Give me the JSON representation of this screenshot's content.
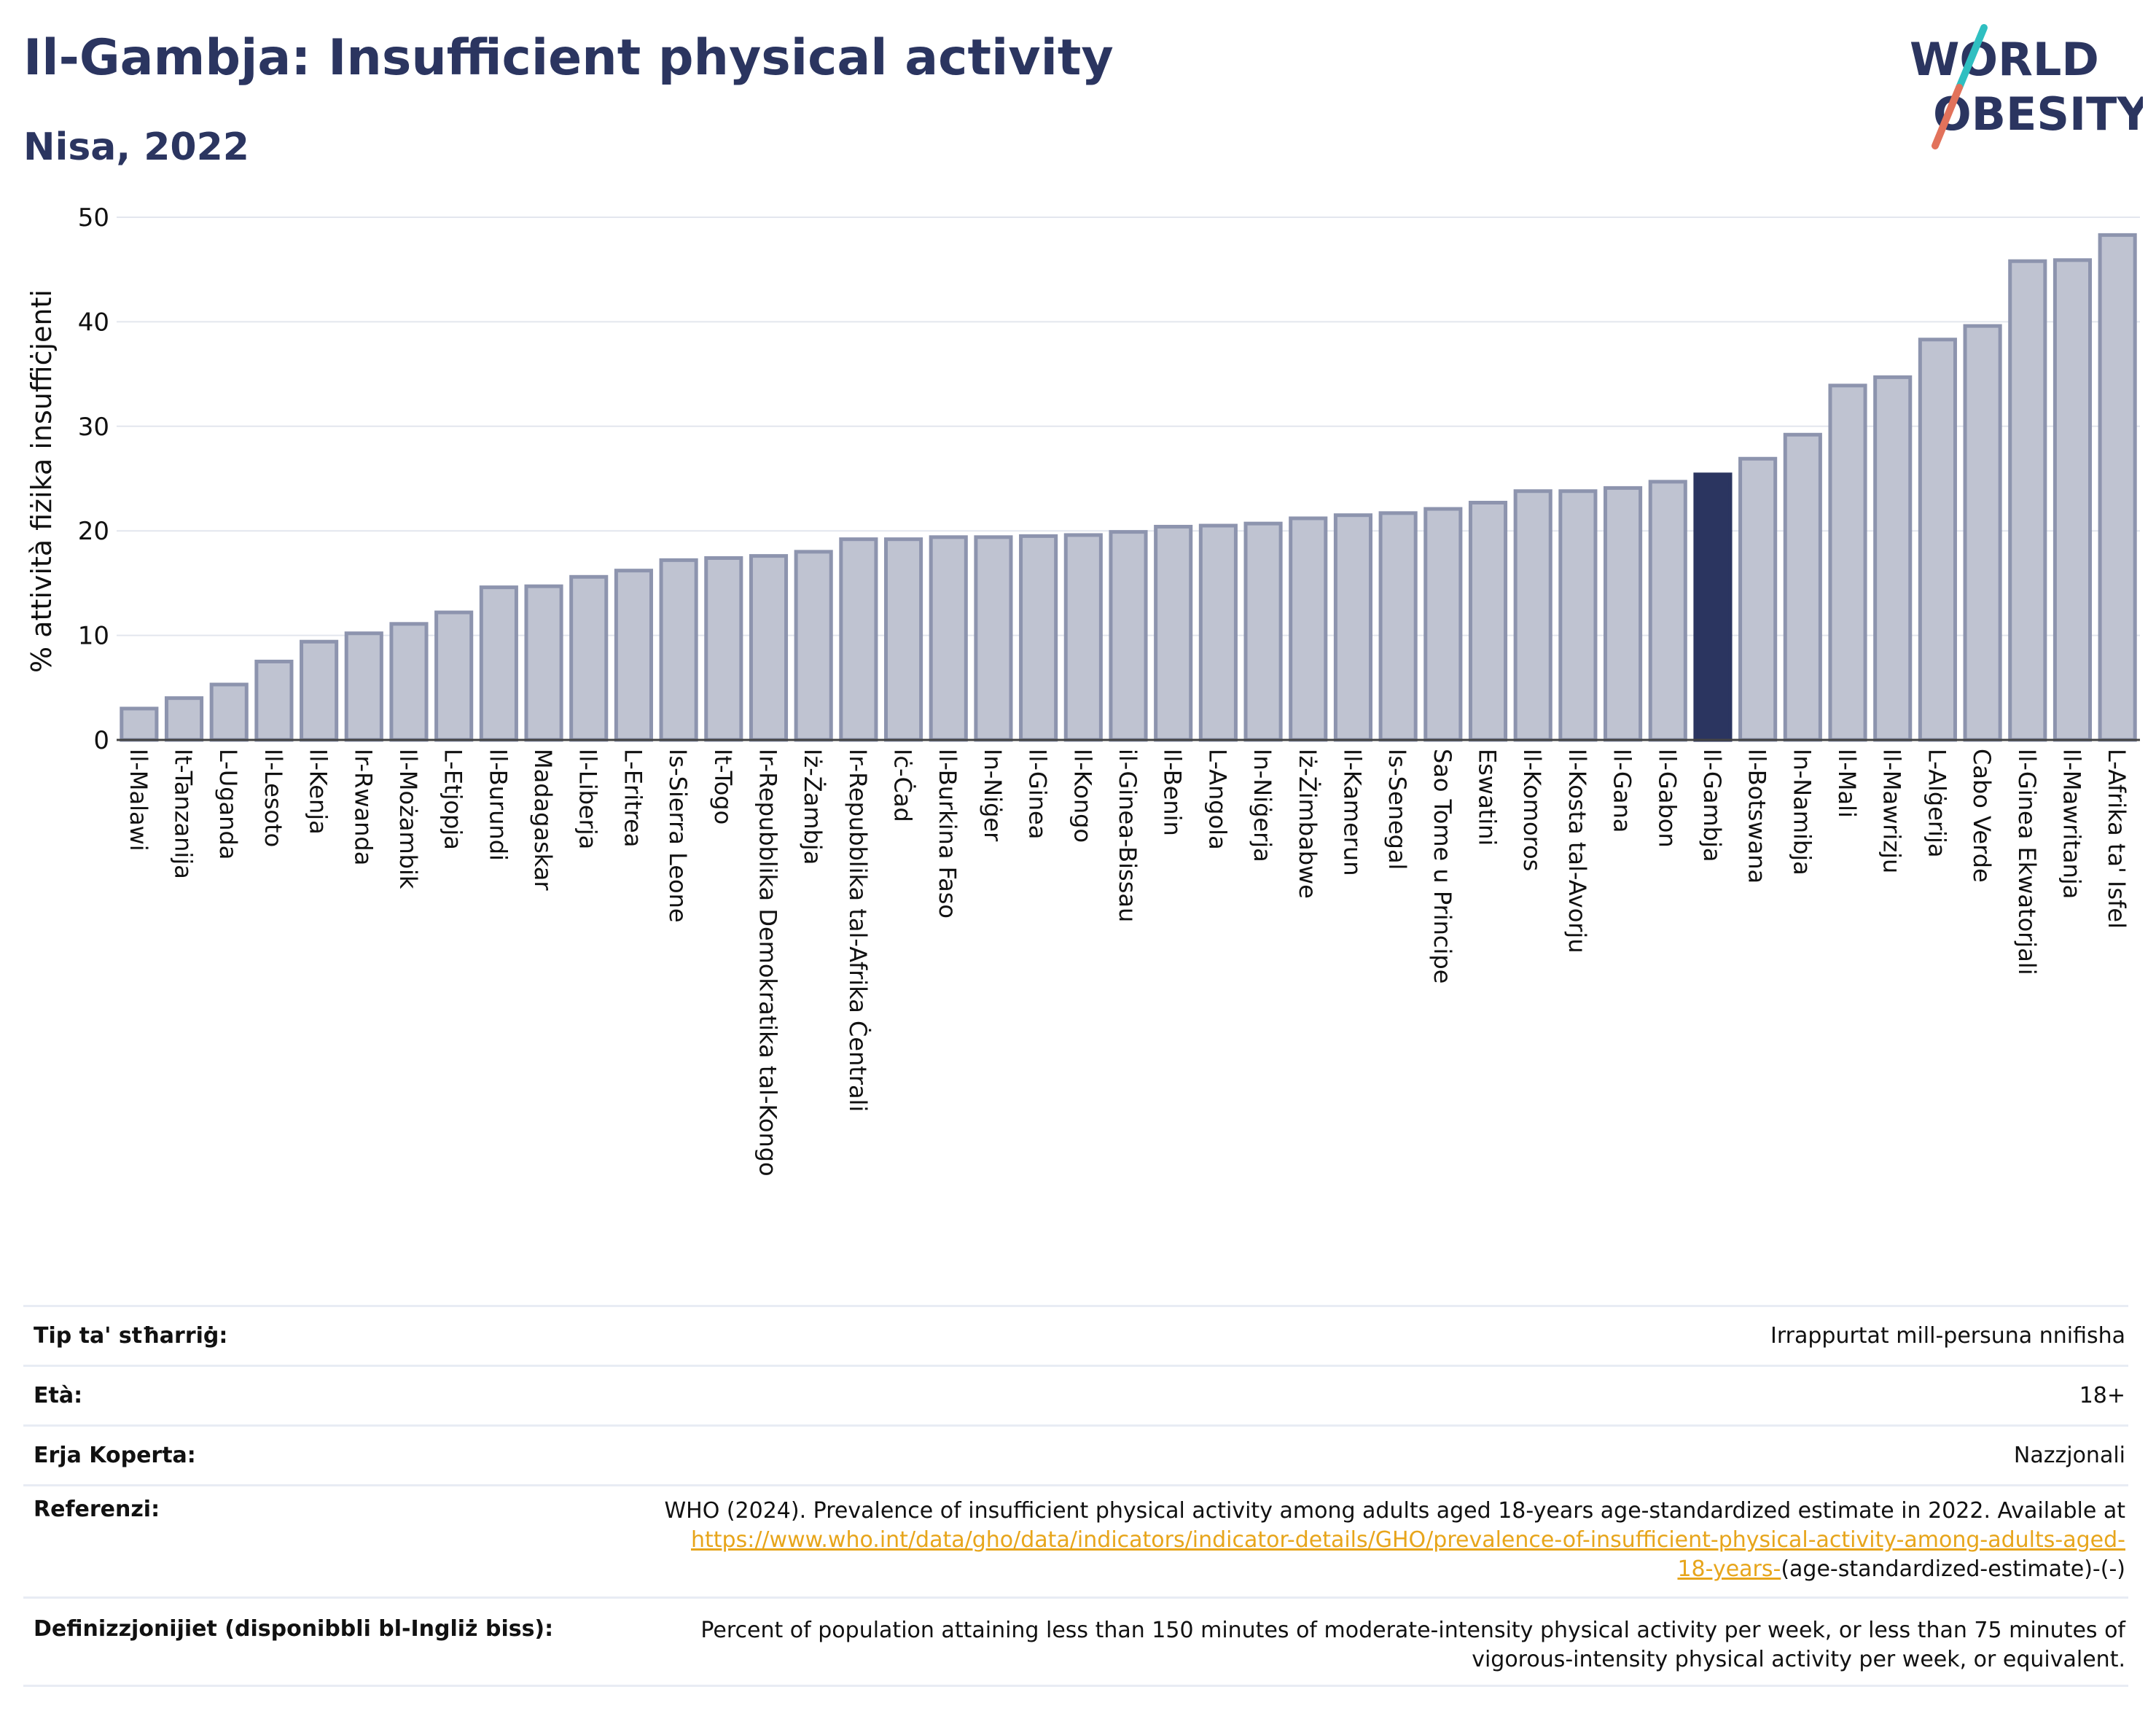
{
  "header": {
    "title": "Il-Gambja: Insufficient physical activity",
    "subtitle": "Nisa, 2022"
  },
  "logo": {
    "line1": "WORLD",
    "line2": "OBESITY",
    "colors": {
      "text": "#2b3560",
      "slash_top": "#2fbfc1",
      "slash_bottom": "#e2725b"
    }
  },
  "chart_data": {
    "type": "bar",
    "ylabel": "% attività fiżika insuffiċjenti",
    "xlabel": "",
    "ylim": [
      0,
      50
    ],
    "yticks": [
      0,
      10,
      20,
      30,
      40,
      50
    ],
    "grid": true,
    "highlight": "Il-Gambja",
    "colors": {
      "bar": "#bfc3d1",
      "bar_edge": "#8d94ae",
      "highlight": "#2b3560"
    },
    "categories": [
      "Il-Malawi",
      "It-Tanzanija",
      "L-Uganda",
      "Il-Lesoto",
      "Il-Kenja",
      "Ir-Rwanda",
      "Il-Możambik",
      "L-Etjopja",
      "Il-Burundi",
      "Madagaskar",
      "Il-Liberja",
      "L-Eritrea",
      "Is-Sierra Leone",
      "It-Togo",
      "Ir-Repubblika Demokratika tal-Kongo",
      "Iż-Żambja",
      "Ir-Repubblika tal-Afrika Ċentrali",
      "Iċ-Ċad",
      "Il-Burkina Faso",
      "In-Niġer",
      "Il-Ginea",
      "Il-Kongo",
      "il-Ginea-Bissau",
      "Il-Benin",
      "L-Angola",
      "In-Niġerja",
      "Iż-Żimbabwe",
      "Il-Kamerun",
      "Is-Senegal",
      "Sao Tome u Principe",
      "Eswatini",
      "Il-Komoros",
      "Il-Kosta tal-Avorju",
      "Il-Gana",
      "Il-Gabon",
      "Il-Gambja",
      "Il-Botswana",
      "In-Namibja",
      "Il-Mali",
      "Il-Mawrizju",
      "L-Alġerija",
      "Cabo Verde",
      "Il-Ginea Ekwatorjali",
      "Il-Mawritanja",
      "L-Afrika ta' Isfel"
    ],
    "values": [
      3.0,
      4.0,
      5.3,
      7.5,
      9.4,
      10.2,
      11.1,
      12.2,
      14.6,
      14.7,
      15.6,
      16.2,
      17.2,
      17.4,
      17.6,
      18.0,
      19.2,
      19.2,
      19.4,
      19.4,
      19.5,
      19.6,
      19.9,
      20.4,
      20.5,
      20.7,
      21.2,
      21.5,
      21.7,
      22.1,
      22.7,
      23.8,
      23.8,
      24.1,
      24.7,
      25.4,
      26.9,
      29.2,
      33.9,
      34.7,
      38.3,
      39.6,
      45.8,
      45.9,
      48.3
    ]
  },
  "info": {
    "rows": [
      {
        "label": "Tip ta' stħarriġ:",
        "value": "Irrappurtat mill-persuna nnifisha"
      },
      {
        "label": "Età:",
        "value": "18+"
      },
      {
        "label": "Erja Koperta:",
        "value": "Nazzjonali"
      }
    ],
    "references": {
      "label": "Referenzi:",
      "text": "WHO (2024). Prevalence of insufficient physical activity among adults aged 18-years age-standardized estimate in 2022. Available at",
      "link_line1": "https://www.who.int/data/gho/data/indicators/indicator-details/GHO/prevalence-of-insufficient-physical-activity-among-adults-aged-",
      "link_line2": "18-years-",
      "tail": "(age-standardized-estimate)-(-)"
    },
    "definitions": {
      "label": "Definizzjonijiet (disponibbli bl-Ingliż biss):",
      "line1": "Percent of population attaining less than 150 minutes of moderate-intensity physical activity per week, or less than 75 minutes of",
      "line2": "vigorous-intensity physical activity per week, or equivalent."
    }
  }
}
